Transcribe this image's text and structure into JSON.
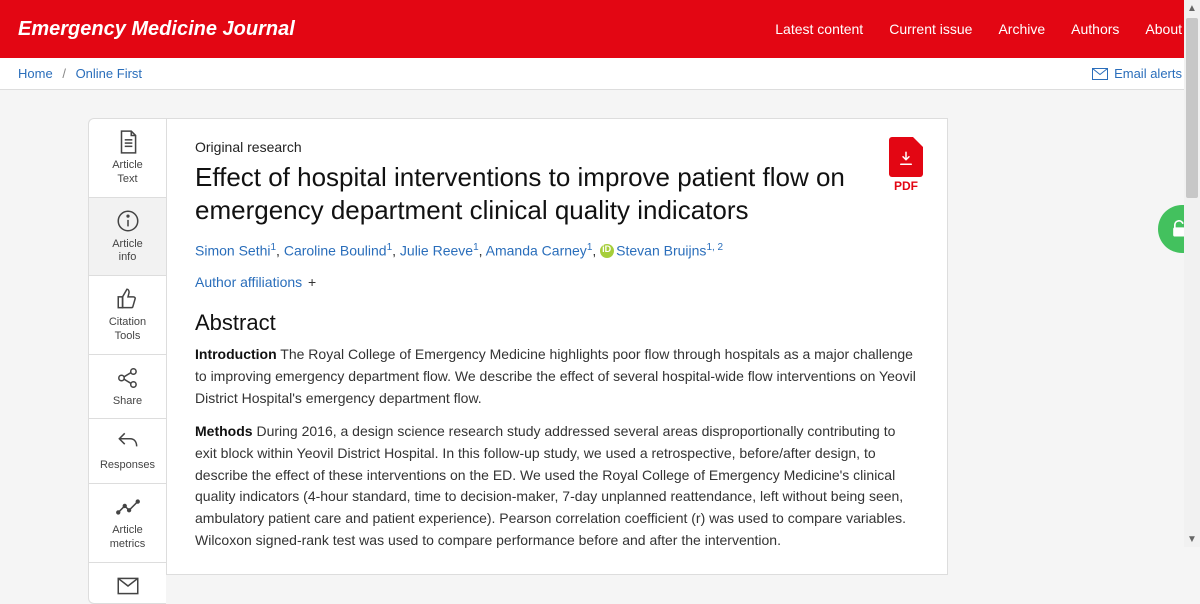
{
  "header": {
    "journal": "Emergency Medicine Journal",
    "nav": {
      "latest": "Latest content",
      "current": "Current issue",
      "archive": "Archive",
      "authors": "Authors",
      "about": "About"
    }
  },
  "breadcrumb": {
    "home": "Home",
    "online_first": "Online First"
  },
  "email_alerts": "Email alerts",
  "sidebar": {
    "text": "Article\nText",
    "info": "Article\ninfo",
    "citation": "Citation\nTools",
    "share": "Share",
    "responses": "Responses",
    "metrics": "Article\nmetrics"
  },
  "article": {
    "type": "Original research",
    "title": "Effect of hospital interventions to improve patient flow on emergency department clinical quality indicators",
    "pdf_label": "PDF",
    "authors": [
      {
        "name": "Simon Sethi",
        "aff": "1"
      },
      {
        "name": "Caroline Boulind",
        "aff": "1"
      },
      {
        "name": "Julie Reeve",
        "aff": "1"
      },
      {
        "name": "Amanda Carney",
        "aff": "1"
      },
      {
        "name": "Stevan Bruijns",
        "aff": "1, 2",
        "orcid": true
      }
    ],
    "affiliations_label": "Author affiliations",
    "abstract_heading": "Abstract",
    "intro_label": "Introduction",
    "intro_text": " The Royal College of Emergency Medicine highlights poor flow through hospitals as a major challenge to improving emergency department flow. We describe the effect of several hospital-wide flow interventions on Yeovil District Hospital's emergency department flow.",
    "methods_label": "Methods",
    "methods_text": " During 2016, a design science research study addressed several areas disproportionally contributing to exit block within Yeovil District Hospital. In this follow-up study, we used a retrospective, before/after design, to describe the effect of these interventions on the ED. We used the Royal College of Emergency Medicine's clinical quality indicators (4-hour standard, time to decision-maker, 7-day unplanned reattendance, left without being seen, ambulatory patient care and patient experience). Pearson correlation coefficient (r) was used to compare variables. Wilcoxon signed-rank test was used to compare performance before and after the intervention."
  }
}
